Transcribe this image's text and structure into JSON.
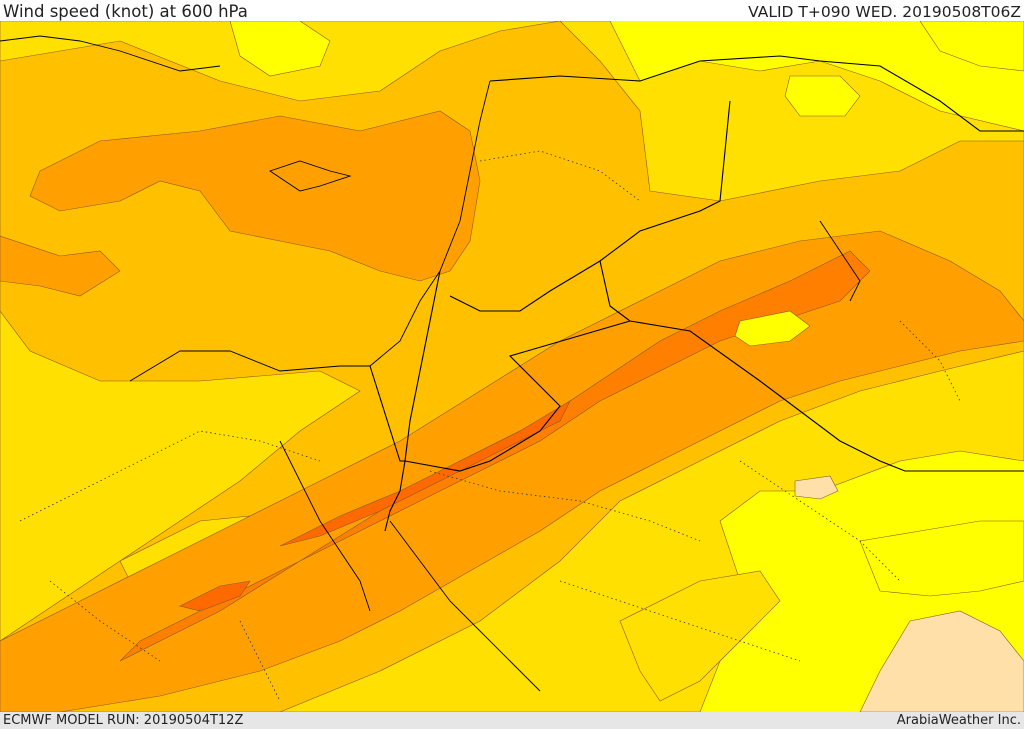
{
  "header": {
    "title": "Wind speed (knot) at 600 hPa",
    "valid": "VALID T+090 WED. 20190508T06Z"
  },
  "footer": {
    "model_run": "ECMWF MODEL RUN: 20190504T12Z",
    "credit": "ArabiaWeather Inc."
  },
  "map": {
    "variable": "wind speed",
    "units": "knot",
    "pressure_level": "600 hPa",
    "colors": {
      "very_light": "#ffe0a8",
      "light": "#ffff00",
      "low": "#ffe000",
      "mid_low": "#ffc000",
      "mid": "#ffa000",
      "mid_high": "#ff8000",
      "high": "#ff6a00",
      "contour": "#8a5a2a",
      "border": "#000000"
    }
  }
}
